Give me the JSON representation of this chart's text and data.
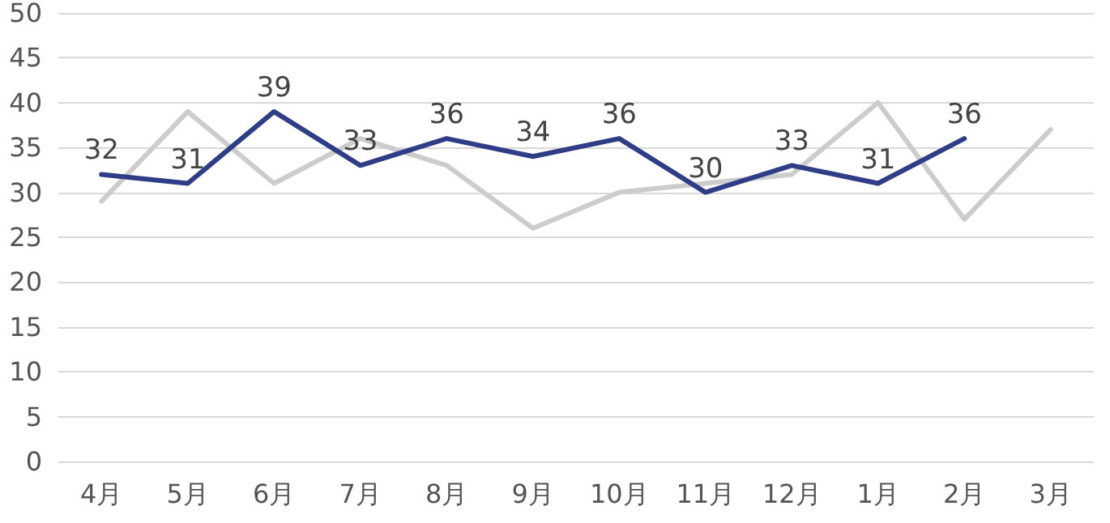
{
  "chart_data": {
    "type": "line",
    "categories": [
      "4月",
      "5月",
      "6月",
      "7月",
      "8月",
      "9月",
      "10月",
      "11月",
      "12月",
      "1月",
      "2月",
      "3月"
    ],
    "series": [
      {
        "color": "#cccccc",
        "values": [
          29,
          39,
          31,
          36,
          33,
          26,
          30,
          31,
          32,
          40,
          27,
          37
        ]
      },
      {
        "color": "#2e3d86",
        "values": [
          32,
          31,
          39,
          33,
          36,
          34,
          36,
          30,
          33,
          31,
          36,
          null
        ],
        "value_labels": [
          "32",
          "31",
          "39",
          "33",
          "36",
          "34",
          "36",
          "30",
          "33",
          "31",
          "36",
          null
        ]
      }
    ],
    "ylim": [
      0,
      50
    ],
    "yticks": [
      0,
      5,
      10,
      15,
      20,
      25,
      30,
      35,
      40,
      45,
      50
    ],
    "grid": "y",
    "marker": "none",
    "line_style": "solid"
  }
}
